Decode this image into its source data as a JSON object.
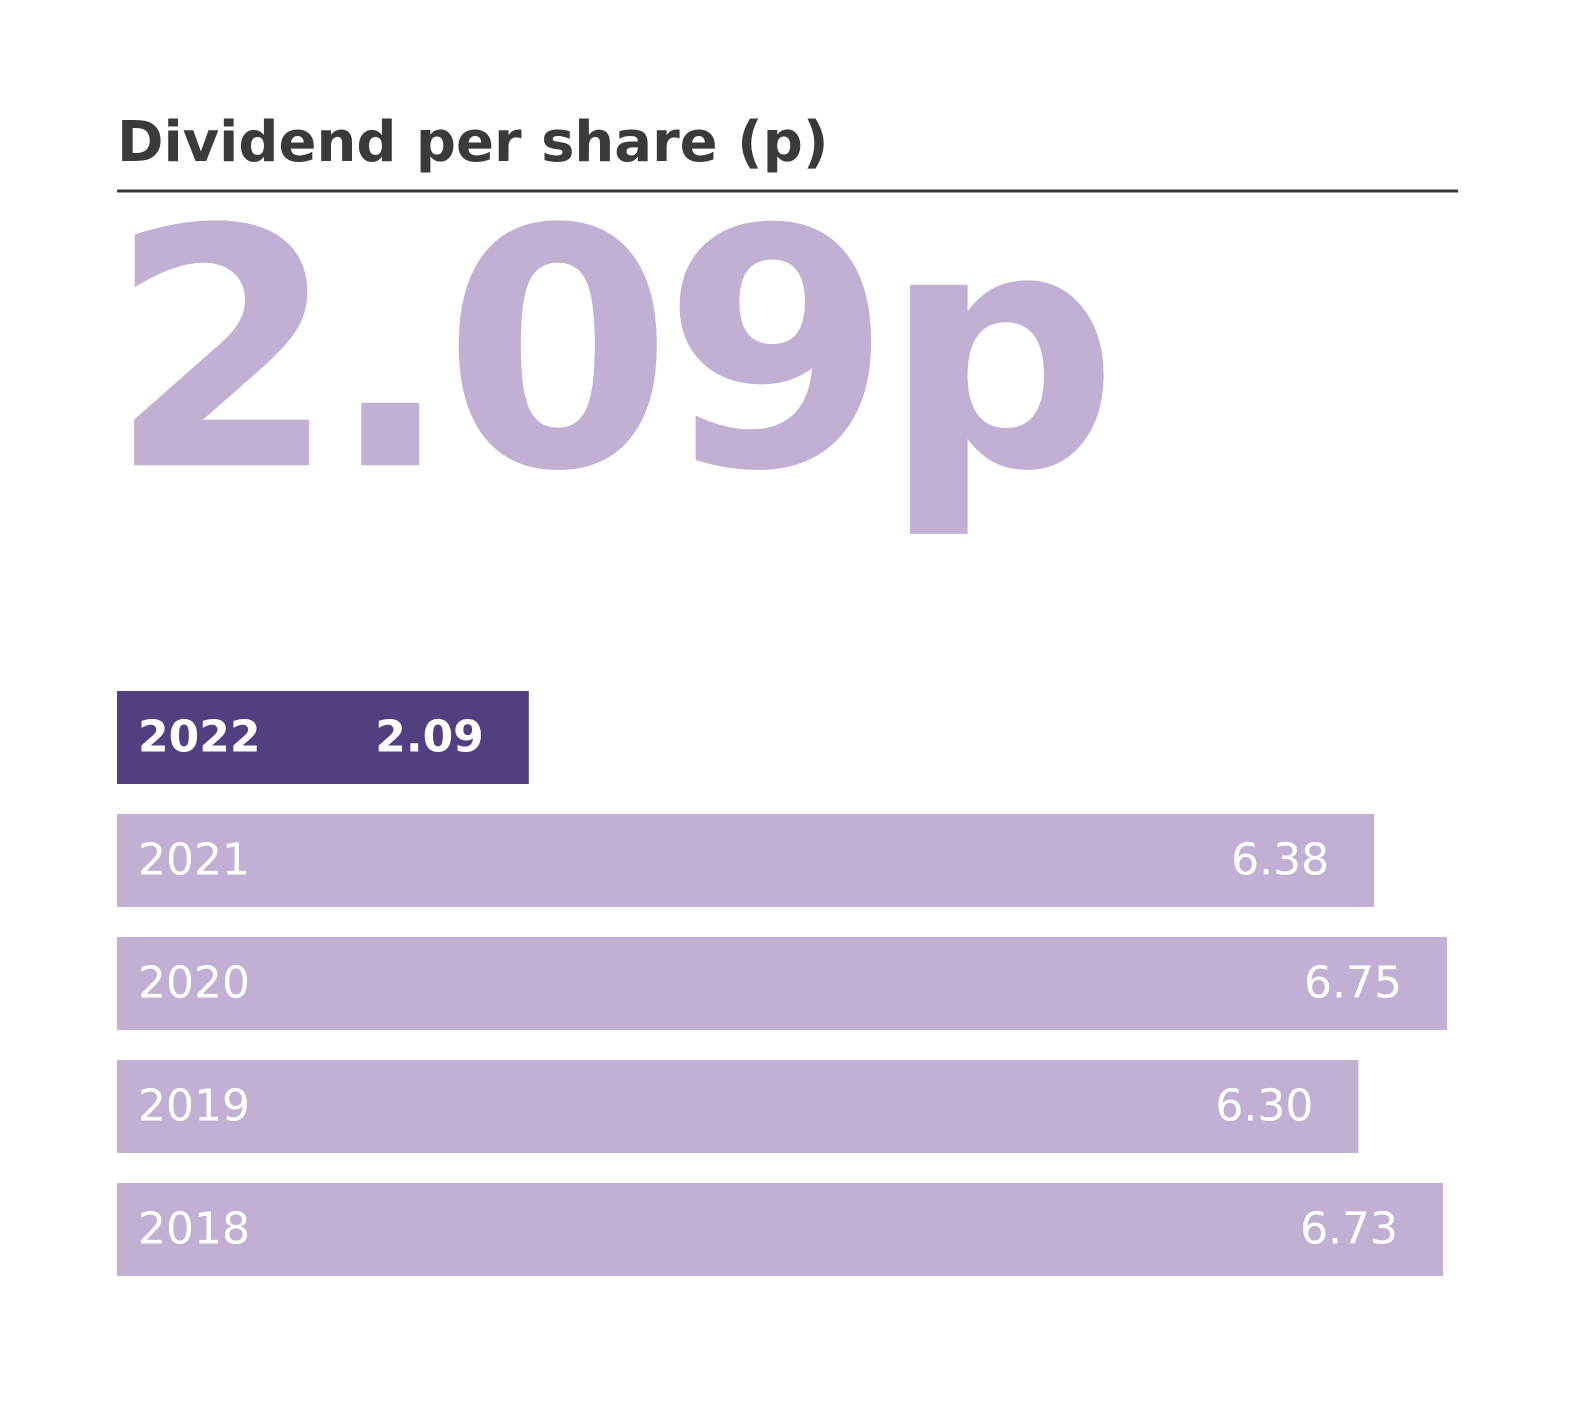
{
  "chart_data": {
    "type": "bar",
    "orientation": "horizontal",
    "title": "Dividend per share (p)",
    "headline": "2.09p",
    "categories": [
      "2022",
      "2021",
      "2020",
      "2019",
      "2018"
    ],
    "values": [
      2.09,
      6.38,
      6.75,
      6.3,
      6.73
    ],
    "value_labels": [
      "2.09",
      "6.38",
      "6.75",
      "6.30",
      "6.73"
    ],
    "colors": [
      "#523f80",
      "#c2b0d4",
      "#c2b0d4",
      "#c2b0d4",
      "#c2b0d4"
    ],
    "headline_color": "#c2b0d4"
  }
}
